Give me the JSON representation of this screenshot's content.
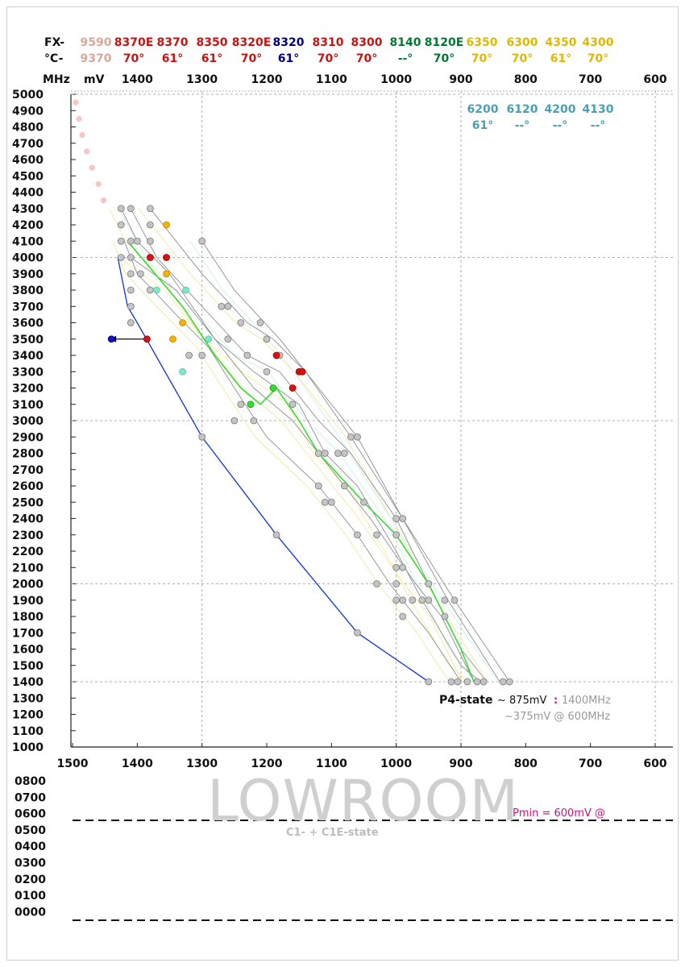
{
  "header": {
    "row1_label": "FX-",
    "row2_label": "°C-",
    "mhz_label": "MHz",
    "mv_label": "mV",
    "models": [
      {
        "name": "9590",
        "temp": "9370",
        "color": "#d8a89a"
      },
      {
        "name": "8370E",
        "temp": "70°",
        "color": "#cc1111"
      },
      {
        "name": "8370",
        "temp": "61°",
        "color": "#cc1111"
      },
      {
        "name": "8350",
        "temp": "61°",
        "color": "#cc1111"
      },
      {
        "name": "8320E",
        "temp": "70°",
        "color": "#cc1111"
      },
      {
        "name": "8320",
        "temp": "61°",
        "color": "#000088"
      },
      {
        "name": "8310",
        "temp": "70°",
        "color": "#cc1111"
      },
      {
        "name": "8300",
        "temp": "70°",
        "color": "#cc1111"
      },
      {
        "name": "8140",
        "temp": "--°",
        "color": "#007a33"
      },
      {
        "name": "8120E",
        "temp": "70°",
        "color": "#007a33"
      },
      {
        "name": "6350",
        "temp": "70°",
        "color": "#e0b800"
      },
      {
        "name": "6300",
        "temp": "70°",
        "color": "#e0b800"
      },
      {
        "name": "4350",
        "temp": "61°",
        "color": "#e0b800"
      },
      {
        "name": "4300",
        "temp": "70°",
        "color": "#e0b800"
      }
    ],
    "models_right": [
      {
        "name": "6200",
        "temp": "61°",
        "color": "#4aa0b0"
      },
      {
        "name": "6120",
        "temp": "--°",
        "color": "#4aa0b0"
      },
      {
        "name": "4200",
        "temp": "--°",
        "color": "#4aa0b0"
      },
      {
        "name": "4130",
        "temp": "--°",
        "color": "#4aa0b0"
      }
    ]
  },
  "annotations": {
    "p4_label": "P4-state",
    "p4_voltage": "~ 875mV",
    "p4_sep": ":",
    "p4_freq": "1400MHz",
    "p4_low": "~375mV @ 600MHz",
    "watermark": "LOWROOM",
    "pmin": "Pmin =  600mV @",
    "c_state": "C1- + C1E-state"
  },
  "colors": {
    "fit_line": "#1a3fd6",
    "avg_line": "#33dd33",
    "grid": "#999999",
    "dot_grey": "#c4c4c4",
    "dot_red": "#dd1111",
    "dot_orange": "#f5b300",
    "dot_teal": "#7de8c8",
    "dot_green": "#33dd33",
    "dot_blue": "#1111cc",
    "dot_pink": "#f8c4c4",
    "pmin_color": "#cc1177"
  },
  "chart_data": {
    "type": "scatter",
    "title": "",
    "xlabel": "mV",
    "ylabel": "MHz",
    "x_direction": "reversed",
    "xlim": [
      1500,
      600
    ],
    "ylim": [
      1000,
      5000
    ],
    "x_ticks": [
      1400,
      1300,
      1200,
      1100,
      1000,
      900,
      800,
      700,
      600
    ],
    "x_ticks_bottom": [
      1500,
      1400,
      1300,
      1200,
      1100,
      1000,
      900,
      800,
      700,
      600
    ],
    "y_ticks": [
      5000,
      4900,
      4800,
      4700,
      4600,
      4500,
      4400,
      4300,
      4200,
      4100,
      4000,
      3900,
      3800,
      3700,
      3600,
      3500,
      3400,
      3300,
      3200,
      3100,
      3000,
      2900,
      2800,
      2700,
      2600,
      2500,
      2400,
      2300,
      2200,
      2100,
      2000,
      1900,
      1800,
      1700,
      1600,
      1500,
      1400,
      1300,
      1200,
      1100,
      1000
    ],
    "y_ticks_lower": [
      "0800",
      "0700",
      "0600",
      "0500",
      "0400",
      "0300",
      "0200",
      "0100",
      "0000"
    ],
    "grid": "dashed at 1000 and 1400 MHz steps",
    "fit_curve": [
      [
        1430,
        4000
      ],
      [
        1415,
        3700
      ],
      [
        1400,
        3600
      ],
      [
        1300,
        2900
      ],
      [
        1185,
        2300
      ],
      [
        1060,
        1700
      ],
      [
        950,
        1400
      ]
    ],
    "avg_curve": [
      [
        1415,
        4100
      ],
      [
        1330,
        3700
      ],
      [
        1280,
        3400
      ],
      [
        1240,
        3200
      ],
      [
        1210,
        3100
      ],
      [
        1185,
        3200
      ],
      [
        1150,
        3000
      ],
      [
        1120,
        2800
      ],
      [
        1050,
        2500
      ],
      [
        1000,
        2300
      ],
      [
        950,
        2000
      ],
      [
        900,
        1600
      ],
      [
        880,
        1400
      ]
    ],
    "grey_lines": [
      [
        [
          1425,
          4300
        ],
        [
          1400,
          4100
        ],
        [
          1350,
          3900
        ],
        [
          1280,
          3500
        ],
        [
          1220,
          3200
        ],
        [
          1160,
          3000
        ],
        [
          1100,
          2700
        ],
        [
          1040,
          2400
        ],
        [
          970,
          2000
        ],
        [
          930,
          1800
        ],
        [
          880,
          1400
        ]
      ],
      [
        [
          1410,
          4300
        ],
        [
          1370,
          4000
        ],
        [
          1300,
          3700
        ],
        [
          1230,
          3400
        ],
        [
          1180,
          3300
        ],
        [
          1120,
          3000
        ],
        [
          1070,
          2800
        ],
        [
          1000,
          2400
        ],
        [
          950,
          2000
        ],
        [
          900,
          1600
        ],
        [
          860,
          1400
        ]
      ],
      [
        [
          1380,
          4300
        ],
        [
          1300,
          3900
        ],
        [
          1230,
          3600
        ],
        [
          1190,
          3500
        ],
        [
          1140,
          3300
        ],
        [
          1100,
          3100
        ],
        [
          1060,
          2900
        ],
        [
          990,
          2400
        ],
        [
          920,
          1900
        ],
        [
          840,
          1400
        ]
      ],
      [
        [
          1300,
          4100
        ],
        [
          1250,
          3800
        ],
        [
          1180,
          3500
        ],
        [
          1140,
          3300
        ],
        [
          1070,
          2900
        ],
        [
          990,
          2400
        ],
        [
          910,
          1900
        ],
        [
          825,
          1400
        ]
      ],
      [
        [
          1410,
          4000
        ],
        [
          1340,
          3800
        ],
        [
          1280,
          3500
        ],
        [
          1220,
          3300
        ],
        [
          1150,
          3100
        ],
        [
          1110,
          2800
        ],
        [
          1060,
          2600
        ],
        [
          1000,
          2200
        ],
        [
          960,
          1900
        ],
        [
          900,
          1500
        ],
        [
          870,
          1400
        ]
      ],
      [
        [
          1420,
          4100
        ],
        [
          1400,
          3900
        ],
        [
          1340,
          3650
        ],
        [
          1290,
          3450
        ],
        [
          1250,
          3200
        ],
        [
          1200,
          2900
        ],
        [
          1120,
          2600
        ],
        [
          1060,
          2300
        ],
        [
          1010,
          2000
        ],
        [
          950,
          1700
        ],
        [
          900,
          1400
        ]
      ]
    ],
    "points_grey": [
      [
        1425,
        4300
      ],
      [
        1410,
        4300
      ],
      [
        1380,
        4300
      ],
      [
        1425,
        4200
      ],
      [
        1380,
        4200
      ],
      [
        1425,
        4100
      ],
      [
        1410,
        4100
      ],
      [
        1400,
        4100
      ],
      [
        1380,
        4100
      ],
      [
        1300,
        4100
      ],
      [
        1425,
        4000
      ],
      [
        1410,
        4000
      ],
      [
        1410,
        3900
      ],
      [
        1395,
        3900
      ],
      [
        1410,
        3800
      ],
      [
        1380,
        3800
      ],
      [
        1410,
        3700
      ],
      [
        1270,
        3700
      ],
      [
        1260,
        3700
      ],
      [
        1410,
        3600
      ],
      [
        1240,
        3600
      ],
      [
        1210,
        3600
      ],
      [
        1260,
        3500
      ],
      [
        1200,
        3500
      ],
      [
        1300,
        3400
      ],
      [
        1320,
        3400
      ],
      [
        1230,
        3400
      ],
      [
        1180,
        3400
      ],
      [
        1200,
        3300
      ],
      [
        1160,
        3100
      ],
      [
        1240,
        3100
      ],
      [
        1220,
        3000
      ],
      [
        1250,
        3000
      ],
      [
        1300,
        2900
      ],
      [
        1070,
        2900
      ],
      [
        1060,
        2900
      ],
      [
        1120,
        2800
      ],
      [
        1110,
        2800
      ],
      [
        1090,
        2800
      ],
      [
        1080,
        2800
      ],
      [
        1120,
        2600
      ],
      [
        1080,
        2600
      ],
      [
        1110,
        2500
      ],
      [
        1100,
        2500
      ],
      [
        1050,
        2500
      ],
      [
        1000,
        2400
      ],
      [
        990,
        2400
      ],
      [
        1060,
        2300
      ],
      [
        1030,
        2300
      ],
      [
        1000,
        2300
      ],
      [
        1185,
        2300
      ],
      [
        1000,
        2100
      ],
      [
        990,
        2100
      ],
      [
        1030,
        2000
      ],
      [
        1000,
        2000
      ],
      [
        950,
        2000
      ],
      [
        1000,
        1900
      ],
      [
        990,
        1900
      ],
      [
        975,
        1900
      ],
      [
        960,
        1900
      ],
      [
        950,
        1900
      ],
      [
        925,
        1900
      ],
      [
        910,
        1900
      ],
      [
        990,
        1800
      ],
      [
        925,
        1800
      ],
      [
        1060,
        1700
      ],
      [
        950,
        1400
      ],
      [
        915,
        1400
      ],
      [
        905,
        1400
      ],
      [
        890,
        1400
      ],
      [
        875,
        1400
      ],
      [
        865,
        1400
      ],
      [
        835,
        1400
      ],
      [
        825,
        1400
      ]
    ],
    "points_red": [
      [
        1380,
        4000
      ],
      [
        1355,
        4000
      ],
      [
        1185,
        3400
      ],
      [
        1150,
        3300
      ],
      [
        1145,
        3300
      ],
      [
        1160,
        3200
      ],
      [
        1385,
        3500
      ]
    ],
    "points_orange": [
      [
        1355,
        4200
      ],
      [
        1355,
        3900
      ],
      [
        1330,
        3600
      ],
      [
        1345,
        3500
      ]
    ],
    "points_teal": [
      [
        1370,
        3800
      ],
      [
        1325,
        3800
      ],
      [
        1290,
        3500
      ],
      [
        1330,
        3300
      ]
    ],
    "points_green": [
      [
        1190,
        3200
      ],
      [
        1225,
        3100
      ]
    ],
    "points_blue": [
      [
        1440,
        3500
      ]
    ],
    "points_pink": [
      [
        1495,
        4950
      ],
      [
        1490,
        4850
      ],
      [
        1485,
        4750
      ],
      [
        1478,
        4650
      ],
      [
        1470,
        4550
      ],
      [
        1460,
        4450
      ],
      [
        1452,
        4350
      ]
    ],
    "arrow": {
      "from": [
        1385,
        3500
      ],
      "to": [
        1445,
        3500
      ]
    },
    "lower_dashed_levels": [
      555,
      0
    ]
  }
}
